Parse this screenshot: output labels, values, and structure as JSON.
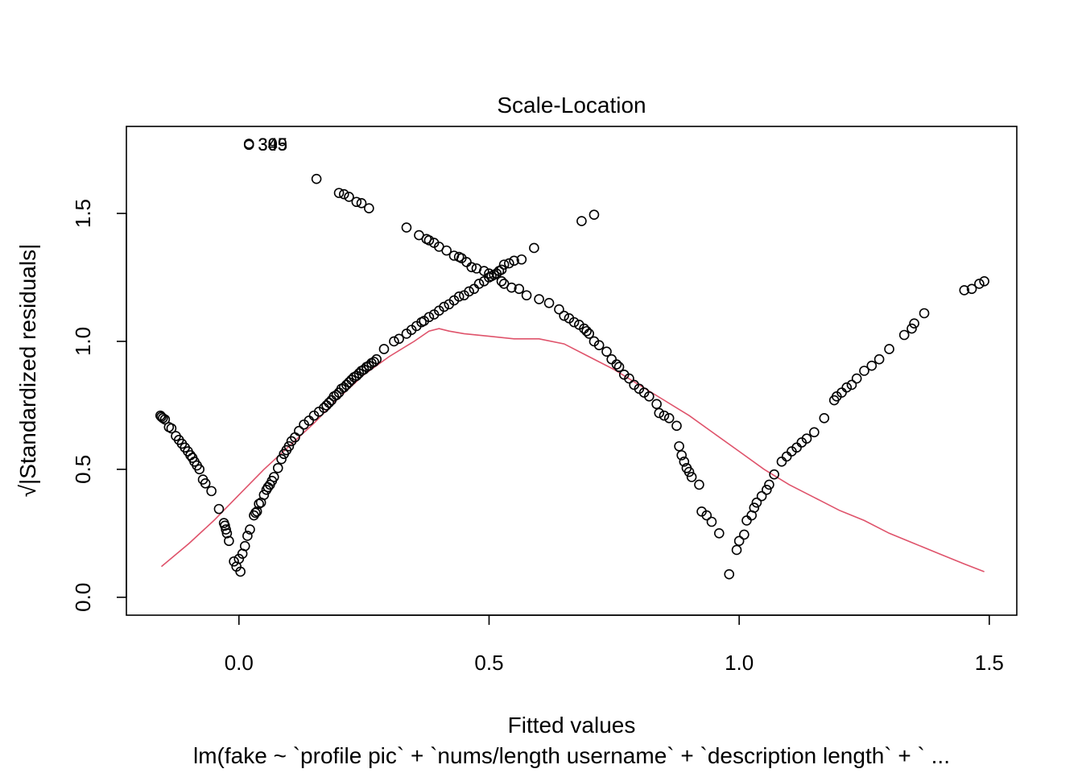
{
  "chart_data": {
    "type": "scatter",
    "title": "Scale-Location",
    "xlabel": "Fitted values",
    "ylabel": "√|Standardized residuals|",
    "subtitle": "lm(fake ~ `profile pic` + `nums/length username` + `description length` + ` ...",
    "xlim": [
      -0.225,
      1.555
    ],
    "ylim": [
      -0.07,
      1.84
    ],
    "x_ticks": [
      0.0,
      0.5,
      1.0,
      1.5
    ],
    "x_tick_labels": [
      "0.0",
      "0.5",
      "1.0",
      "1.5"
    ],
    "y_ticks": [
      0.0,
      0.5,
      1.0,
      1.5
    ],
    "y_tick_labels": [
      "0.0",
      "0.5",
      "1.0",
      "1.5"
    ],
    "grid": false,
    "colors": {
      "points": "#000000",
      "smooth": "#DF536B"
    },
    "point_labels": [
      {
        "text": "395",
        "x": 0.025,
        "y": 1.77
      },
      {
        "text": "349",
        "x": 0.025,
        "y": 1.77
      },
      {
        "text": "305",
        "x": 0.025,
        "y": 1.77
      }
    ],
    "series": [
      {
        "kind": "points",
        "x": [
          -0.157,
          -0.155,
          -0.152,
          -0.148,
          -0.14,
          -0.135,
          -0.126,
          -0.12,
          -0.114,
          -0.108,
          -0.102,
          -0.097,
          -0.093,
          -0.089,
          -0.084,
          -0.079,
          -0.072,
          -0.067,
          -0.055,
          -0.04,
          -0.03,
          -0.028,
          -0.026,
          -0.024,
          -0.02,
          -0.01,
          -0.005,
          0.0,
          0.003,
          0.007,
          0.012,
          0.017,
          0.022,
          0.03,
          0.033,
          0.036,
          0.04,
          0.044,
          0.05,
          0.055,
          0.058,
          0.062,
          0.066,
          0.07,
          0.078,
          0.085,
          0.09,
          0.095,
          0.1,
          0.105,
          0.112,
          0.12,
          0.13,
          0.14,
          0.15,
          0.16,
          0.17,
          0.175,
          0.18,
          0.185,
          0.19,
          0.195,
          0.2,
          0.205,
          0.21,
          0.215,
          0.22,
          0.225,
          0.23,
          0.235,
          0.24,
          0.245,
          0.25,
          0.255,
          0.26,
          0.265,
          0.27,
          0.275,
          0.29,
          0.31,
          0.32,
          0.335,
          0.345,
          0.355,
          0.365,
          0.37,
          0.38,
          0.39,
          0.4,
          0.41,
          0.42,
          0.43,
          0.44,
          0.45,
          0.46,
          0.47,
          0.48,
          0.49,
          0.5,
          0.51,
          0.515,
          0.52,
          0.525,
          0.53,
          0.54,
          0.55,
          0.565,
          0.59,
          0.155,
          0.2,
          0.21,
          0.22,
          0.235,
          0.245,
          0.26,
          0.335,
          0.36,
          0.375,
          0.38,
          0.39,
          0.4,
          0.415,
          0.43,
          0.44,
          0.445,
          0.455,
          0.465,
          0.475,
          0.49,
          0.5,
          0.505,
          0.525,
          0.53,
          0.545,
          0.56,
          0.575,
          0.6,
          0.62,
          0.64,
          0.65,
          0.66,
          0.67,
          0.68,
          0.69,
          0.695,
          0.7,
          0.71,
          0.72,
          0.735,
          0.745,
          0.755,
          0.76,
          0.77,
          0.78,
          0.79,
          0.8,
          0.81,
          0.82,
          0.835,
          0.84,
          0.85,
          0.86,
          0.875,
          0.88,
          0.885,
          0.89,
          0.895,
          0.9,
          0.905,
          0.92,
          0.925,
          0.935,
          0.945,
          0.96,
          0.98,
          0.995,
          1.0,
          1.01,
          1.015,
          1.025,
          1.03,
          1.035,
          1.045,
          1.055,
          1.06,
          1.07,
          1.085,
          1.095,
          1.105,
          1.115,
          1.125,
          1.135,
          1.15,
          1.17,
          1.19,
          1.195,
          1.205,
          1.215,
          1.225,
          1.235,
          1.25,
          1.265,
          1.28,
          1.3,
          1.33,
          1.345,
          1.35,
          1.37,
          1.45,
          1.465,
          1.48,
          1.49,
          0.685,
          0.71,
          0.02,
          0.02,
          0.02
        ],
        "y": [
          0.71,
          0.705,
          0.7,
          0.695,
          0.665,
          0.66,
          0.63,
          0.615,
          0.6,
          0.585,
          0.57,
          0.555,
          0.545,
          0.53,
          0.515,
          0.5,
          0.46,
          0.445,
          0.415,
          0.345,
          0.29,
          0.28,
          0.265,
          0.25,
          0.22,
          0.14,
          0.12,
          0.15,
          0.1,
          0.17,
          0.2,
          0.24,
          0.265,
          0.32,
          0.33,
          0.335,
          0.365,
          0.37,
          0.4,
          0.42,
          0.43,
          0.44,
          0.455,
          0.47,
          0.505,
          0.54,
          0.56,
          0.575,
          0.59,
          0.61,
          0.625,
          0.65,
          0.675,
          0.69,
          0.71,
          0.725,
          0.74,
          0.75,
          0.76,
          0.77,
          0.785,
          0.79,
          0.8,
          0.815,
          0.82,
          0.83,
          0.84,
          0.85,
          0.86,
          0.865,
          0.875,
          0.885,
          0.89,
          0.9,
          0.905,
          0.915,
          0.92,
          0.93,
          0.97,
          1.0,
          1.01,
          1.03,
          1.045,
          1.06,
          1.075,
          1.08,
          1.095,
          1.105,
          1.12,
          1.135,
          1.145,
          1.16,
          1.175,
          1.18,
          1.195,
          1.205,
          1.225,
          1.235,
          1.25,
          1.26,
          1.265,
          1.275,
          1.28,
          1.3,
          1.305,
          1.315,
          1.32,
          1.365,
          1.635,
          1.58,
          1.575,
          1.565,
          1.545,
          1.54,
          1.52,
          1.445,
          1.415,
          1.4,
          1.395,
          1.385,
          1.37,
          1.355,
          1.335,
          1.33,
          1.325,
          1.31,
          1.29,
          1.285,
          1.275,
          1.265,
          1.255,
          1.235,
          1.225,
          1.21,
          1.205,
          1.18,
          1.165,
          1.15,
          1.125,
          1.1,
          1.09,
          1.075,
          1.065,
          1.05,
          1.04,
          1.03,
          1.0,
          0.985,
          0.96,
          0.93,
          0.91,
          0.9,
          0.87,
          0.855,
          0.83,
          0.815,
          0.8,
          0.785,
          0.755,
          0.72,
          0.71,
          0.7,
          0.67,
          0.59,
          0.555,
          0.53,
          0.505,
          0.49,
          0.47,
          0.44,
          0.335,
          0.32,
          0.295,
          0.25,
          0.09,
          0.185,
          0.22,
          0.245,
          0.3,
          0.32,
          0.35,
          0.37,
          0.395,
          0.42,
          0.44,
          0.48,
          0.53,
          0.55,
          0.57,
          0.585,
          0.605,
          0.62,
          0.645,
          0.7,
          0.77,
          0.785,
          0.8,
          0.82,
          0.83,
          0.855,
          0.885,
          0.905,
          0.93,
          0.97,
          1.025,
          1.05,
          1.07,
          1.11,
          1.2,
          1.205,
          1.225,
          1.235,
          1.47,
          1.495,
          1.77,
          1.768,
          1.772
        ]
      },
      {
        "kind": "smooth",
        "x": [
          -0.155,
          -0.1,
          -0.05,
          0.0,
          0.05,
          0.1,
          0.15,
          0.2,
          0.25,
          0.3,
          0.35,
          0.38,
          0.4,
          0.42,
          0.45,
          0.5,
          0.55,
          0.6,
          0.65,
          0.7,
          0.75,
          0.8,
          0.85,
          0.9,
          0.95,
          1.0,
          1.05,
          1.1,
          1.15,
          1.2,
          1.25,
          1.3,
          1.35,
          1.4,
          1.45,
          1.49
        ],
        "y": [
          0.12,
          0.21,
          0.3,
          0.4,
          0.5,
          0.59,
          0.68,
          0.78,
          0.87,
          0.94,
          1.0,
          1.04,
          1.05,
          1.04,
          1.03,
          1.02,
          1.01,
          1.01,
          0.99,
          0.94,
          0.89,
          0.83,
          0.77,
          0.71,
          0.64,
          0.57,
          0.5,
          0.44,
          0.39,
          0.34,
          0.3,
          0.25,
          0.21,
          0.17,
          0.13,
          0.1
        ]
      }
    ]
  }
}
